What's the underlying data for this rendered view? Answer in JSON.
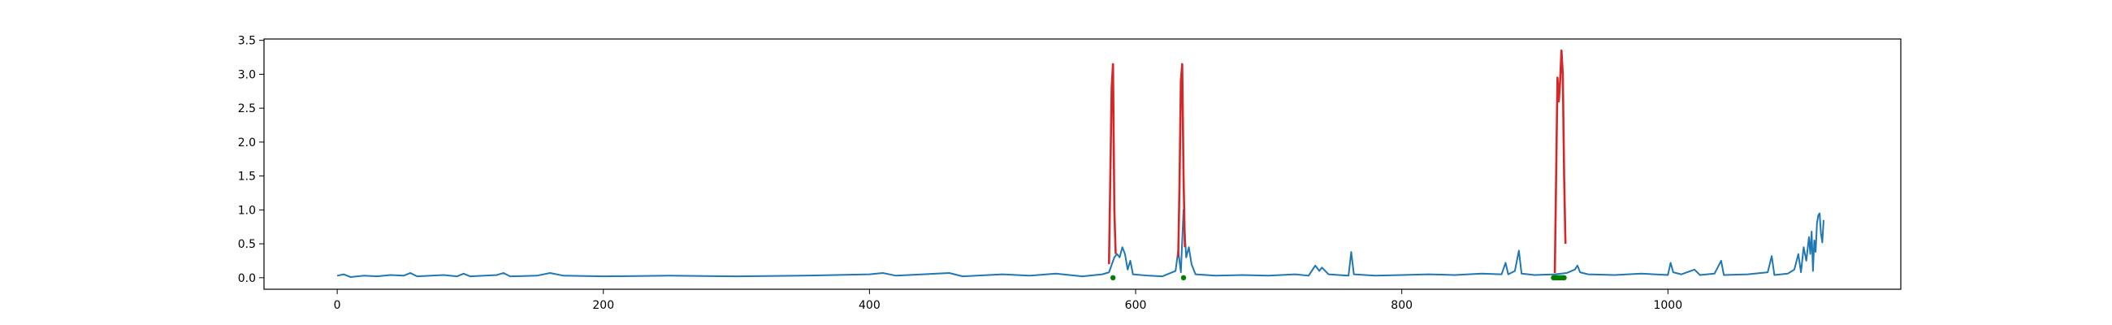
{
  "chart_data": {
    "type": "line",
    "title": "",
    "xlabel": "",
    "ylabel": "",
    "xlim": [
      -55,
      1175
    ],
    "ylim": [
      -0.17,
      3.52
    ],
    "x_ticks": [
      0,
      200,
      400,
      600,
      800,
      1000
    ],
    "y_ticks": [
      0.0,
      0.5,
      1.0,
      1.5,
      2.0,
      2.5,
      3.0,
      3.5
    ],
    "x_tick_labels": [
      "0",
      "200",
      "400",
      "600",
      "800",
      "1000"
    ],
    "y_tick_labels": [
      "0.0",
      "0.5",
      "1.0",
      "1.5",
      "2.0",
      "2.5",
      "3.0",
      "3.5"
    ],
    "grid": false,
    "legend": "none",
    "series": [
      {
        "color": "#1f77b4",
        "points": [
          [
            0,
            0.03
          ],
          [
            5,
            0.05
          ],
          [
            10,
            0.01
          ],
          [
            20,
            0.03
          ],
          [
            30,
            0.02
          ],
          [
            40,
            0.04
          ],
          [
            50,
            0.03
          ],
          [
            55,
            0.07
          ],
          [
            60,
            0.02
          ],
          [
            80,
            0.04
          ],
          [
            90,
            0.02
          ],
          [
            95,
            0.06
          ],
          [
            100,
            0.02
          ],
          [
            120,
            0.04
          ],
          [
            125,
            0.07
          ],
          [
            130,
            0.02
          ],
          [
            150,
            0.03
          ],
          [
            160,
            0.07
          ],
          [
            170,
            0.03
          ],
          [
            200,
            0.02
          ],
          [
            250,
            0.03
          ],
          [
            300,
            0.02
          ],
          [
            350,
            0.03
          ],
          [
            400,
            0.05
          ],
          [
            410,
            0.07
          ],
          [
            420,
            0.03
          ],
          [
            460,
            0.07
          ],
          [
            470,
            0.02
          ],
          [
            500,
            0.05
          ],
          [
            520,
            0.03
          ],
          [
            540,
            0.06
          ],
          [
            560,
            0.02
          ],
          [
            575,
            0.05
          ],
          [
            580,
            0.08
          ],
          [
            584,
            0.3
          ],
          [
            586,
            0.35
          ],
          [
            588,
            0.3
          ],
          [
            590,
            0.45
          ],
          [
            592,
            0.35
          ],
          [
            594,
            0.12
          ],
          [
            596,
            0.25
          ],
          [
            598,
            0.05
          ],
          [
            610,
            0.03
          ],
          [
            620,
            0.02
          ],
          [
            630,
            0.1
          ],
          [
            632,
            0.4
          ],
          [
            634,
            0.08
          ],
          [
            636,
            1.0
          ],
          [
            638,
            0.3
          ],
          [
            640,
            0.45
          ],
          [
            642,
            0.2
          ],
          [
            645,
            0.05
          ],
          [
            660,
            0.03
          ],
          [
            680,
            0.04
          ],
          [
            700,
            0.03
          ],
          [
            720,
            0.05
          ],
          [
            730,
            0.03
          ],
          [
            735,
            0.18
          ],
          [
            738,
            0.1
          ],
          [
            740,
            0.15
          ],
          [
            745,
            0.05
          ],
          [
            760,
            0.03
          ],
          [
            762,
            0.38
          ],
          [
            764,
            0.05
          ],
          [
            780,
            0.03
          ],
          [
            800,
            0.04
          ],
          [
            820,
            0.05
          ],
          [
            840,
            0.04
          ],
          [
            860,
            0.06
          ],
          [
            875,
            0.05
          ],
          [
            878,
            0.22
          ],
          [
            880,
            0.05
          ],
          [
            885,
            0.1
          ],
          [
            888,
            0.4
          ],
          [
            890,
            0.06
          ],
          [
            900,
            0.04
          ],
          [
            915,
            0.05
          ],
          [
            924,
            0.07
          ],
          [
            930,
            0.12
          ],
          [
            932,
            0.18
          ],
          [
            934,
            0.08
          ],
          [
            940,
            0.05
          ],
          [
            960,
            0.04
          ],
          [
            980,
            0.06
          ],
          [
            1000,
            0.04
          ],
          [
            1002,
            0.22
          ],
          [
            1004,
            0.08
          ],
          [
            1010,
            0.05
          ],
          [
            1020,
            0.12
          ],
          [
            1024,
            0.04
          ],
          [
            1035,
            0.06
          ],
          [
            1040,
            0.25
          ],
          [
            1042,
            0.04
          ],
          [
            1060,
            0.05
          ],
          [
            1075,
            0.08
          ],
          [
            1078,
            0.32
          ],
          [
            1080,
            0.04
          ],
          [
            1090,
            0.06
          ],
          [
            1095,
            0.12
          ],
          [
            1098,
            0.35
          ],
          [
            1100,
            0.08
          ],
          [
            1102,
            0.45
          ],
          [
            1104,
            0.25
          ],
          [
            1106,
            0.6
          ],
          [
            1107,
            0.35
          ],
          [
            1108,
            0.68
          ],
          [
            1109,
            0.1
          ],
          [
            1110,
            0.55
          ],
          [
            1111,
            0.38
          ],
          [
            1112,
            0.8
          ],
          [
            1113,
            0.92
          ],
          [
            1114,
            0.95
          ],
          [
            1115,
            0.65
          ],
          [
            1116,
            0.52
          ],
          [
            1117,
            0.85
          ]
        ]
      },
      {
        "color": "#d62728",
        "points": [
          [
            580,
            0.2
          ],
          [
            581,
            1.5
          ],
          [
            582,
            2.8
          ],
          [
            583,
            3.15
          ],
          [
            584,
            1.0
          ],
          [
            585,
            0.35
          ]
        ]
      },
      {
        "color": "#d62728",
        "points": [
          [
            632,
            0.3
          ],
          [
            633,
            1.4
          ],
          [
            634,
            2.9
          ],
          [
            635,
            3.15
          ],
          [
            636,
            1.5
          ],
          [
            637,
            0.45
          ]
        ]
      },
      {
        "color": "#d62728",
        "points": [
          [
            915,
            0.07
          ],
          [
            916,
            1.5
          ],
          [
            917,
            2.95
          ],
          [
            918,
            2.6
          ],
          [
            919,
            2.9
          ],
          [
            920,
            3.35
          ],
          [
            921,
            3.0
          ],
          [
            922,
            1.5
          ],
          [
            923,
            0.5
          ]
        ]
      }
    ],
    "markers": {
      "color": "#008000",
      "points": [
        [
          583,
          0.0
        ],
        [
          636,
          0.0
        ],
        [
          914,
          0.0
        ],
        [
          915,
          0.0
        ],
        [
          916,
          0.0
        ],
        [
          917,
          0.0
        ],
        [
          918,
          0.0
        ],
        [
          919,
          0.0
        ],
        [
          920,
          0.0
        ],
        [
          921,
          0.0
        ],
        [
          922,
          0.0
        ]
      ]
    }
  }
}
